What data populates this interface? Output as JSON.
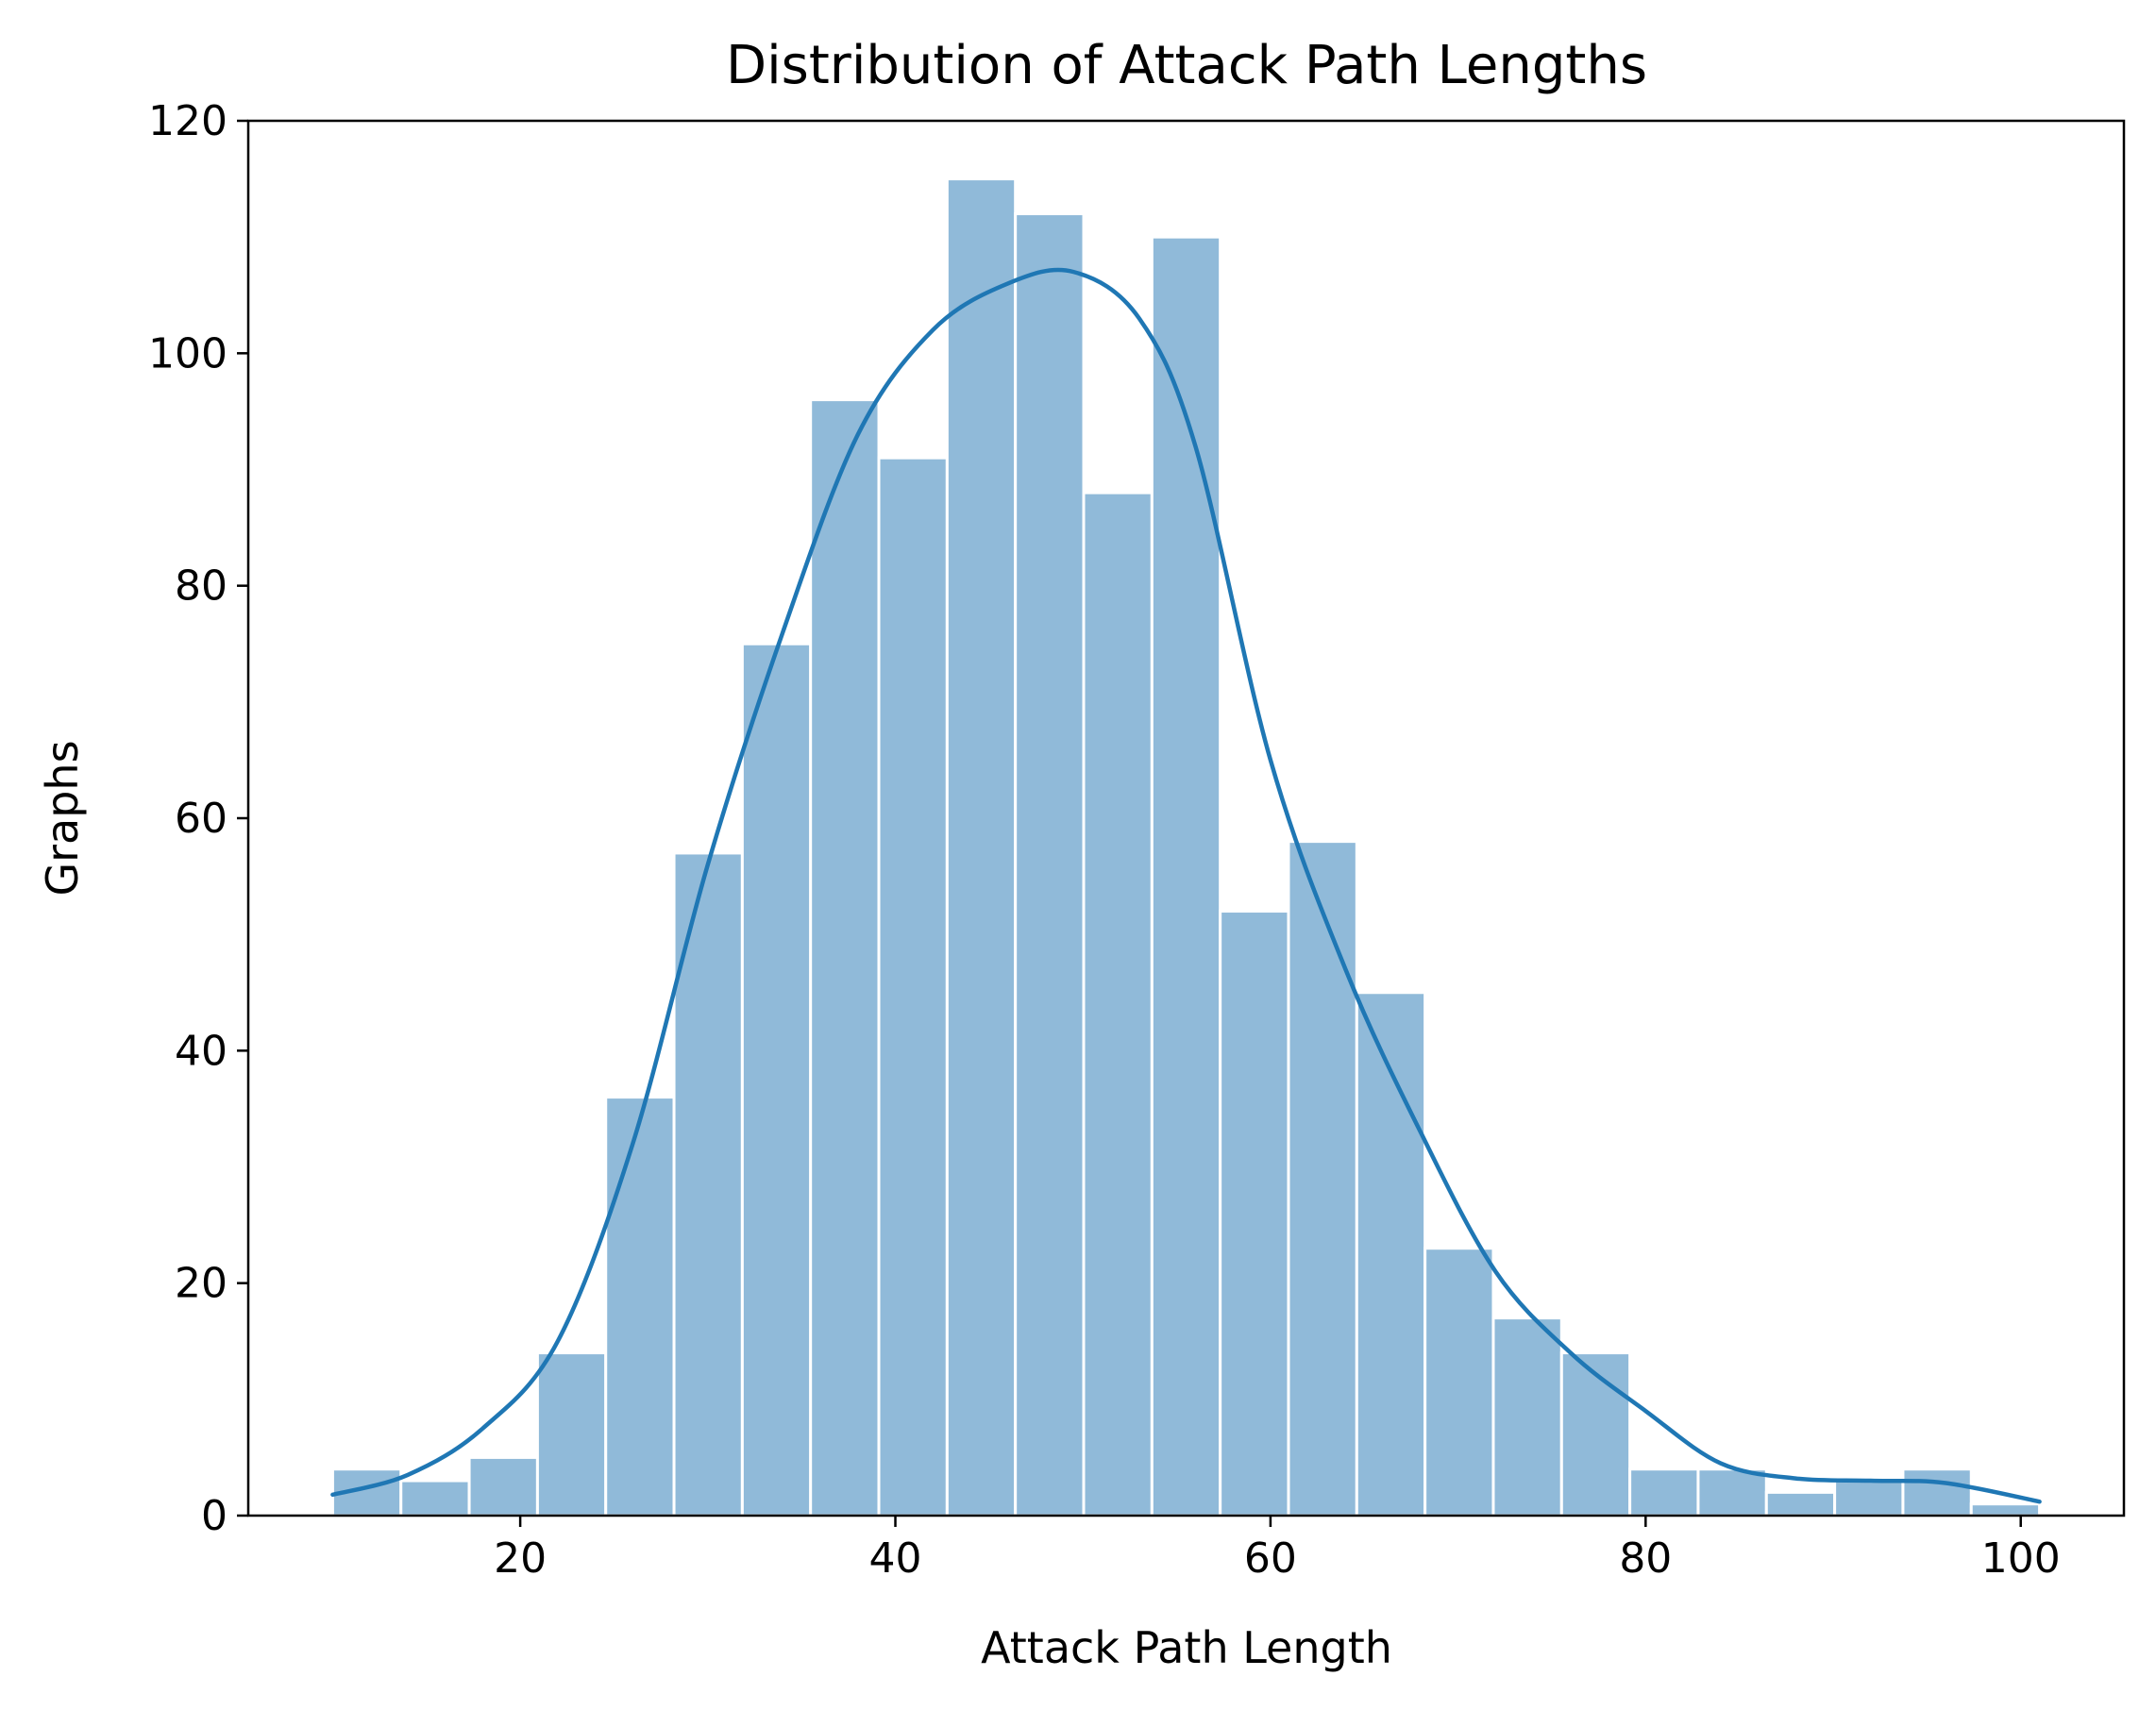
{
  "chart_data": {
    "type": "bar",
    "title": "Distribution of Attack Path Lengths",
    "xlabel": "Attack Path Length",
    "ylabel": "Graphs",
    "xlim": [
      5.5,
      105.5
    ],
    "ylim": [
      0,
      120
    ],
    "xticks": [
      20,
      40,
      60,
      80,
      100
    ],
    "yticks": [
      0,
      20,
      40,
      60,
      80,
      100,
      120
    ],
    "bins": {
      "left_edges": [
        10.0,
        13.64,
        17.28,
        20.92,
        24.56,
        28.2,
        31.84,
        35.48,
        39.12,
        42.76,
        46.4,
        50.04,
        53.68,
        57.32,
        60.96,
        64.6,
        68.24,
        71.88,
        75.52,
        79.16,
        82.8,
        86.44,
        90.08,
        93.72,
        97.36
      ],
      "width": 3.64,
      "counts": [
        4,
        3,
        5,
        14,
        36,
        57,
        75,
        96,
        91,
        115,
        112,
        88,
        110,
        52,
        58,
        45,
        23,
        17,
        14,
        4,
        4,
        2,
        3,
        4,
        1
      ]
    },
    "kde": {
      "x": [
        10,
        14,
        18,
        22,
        26,
        30,
        34,
        38,
        42,
        46,
        49.5,
        53,
        56,
        60,
        64,
        68,
        72,
        76,
        80,
        84,
        88,
        92,
        96,
        101
      ],
      "y": [
        1.8,
        3.5,
        7.5,
        15,
        32,
        56,
        76,
        93,
        102,
        106,
        107,
        103,
        92,
        65,
        47,
        33,
        21,
        14,
        9,
        4.5,
        3.2,
        3.0,
        2.8,
        1.2
      ]
    },
    "colors": {
      "bar_fill": "#90bad9",
      "kde_line": "#1f77b4"
    },
    "grid": false,
    "legend": "none"
  }
}
